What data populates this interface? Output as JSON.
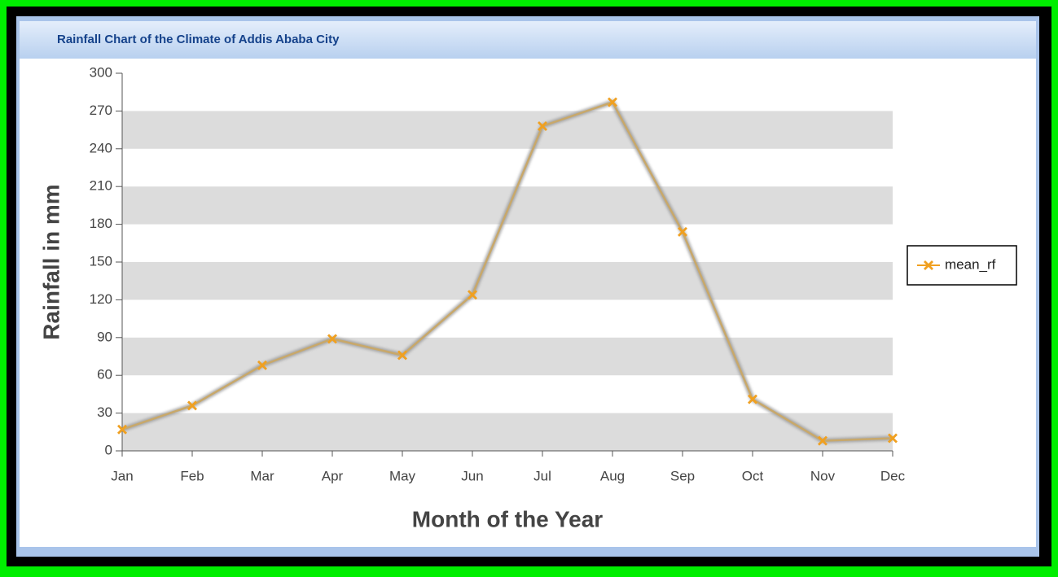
{
  "chart_data": {
    "type": "line",
    "title": "Rainfall Chart of the Climate of Addis Ababa City",
    "x_label": "Month of the Year",
    "y_label": "Rainfall in mm",
    "categories": [
      "Jan",
      "Feb",
      "Mar",
      "Apr",
      "May",
      "Jun",
      "Jul",
      "Aug",
      "Sep",
      "Oct",
      "Nov",
      "Dec"
    ],
    "series": [
      {
        "name": "mean_rf",
        "color": "#f0a020",
        "values": [
          17,
          36,
          68,
          89,
          76,
          124,
          258,
          277,
          174,
          41,
          8,
          10
        ]
      }
    ],
    "ylim": [
      0,
      300
    ],
    "yticks": [
      0,
      30,
      60,
      90,
      120,
      150,
      180,
      210,
      240,
      270,
      300
    ],
    "grid_bands": true,
    "legend": "right"
  }
}
